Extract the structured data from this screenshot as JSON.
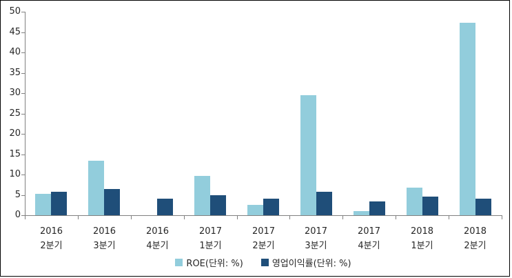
{
  "chart_data": {
    "type": "bar",
    "title": "",
    "xlabel": "",
    "ylabel": "",
    "categories": [
      [
        "2016",
        "2분기"
      ],
      [
        "2016",
        "3분기"
      ],
      [
        "2016",
        "4분기"
      ],
      [
        "2017",
        "1분기"
      ],
      [
        "2017",
        "2분기"
      ],
      [
        "2017",
        "3분기"
      ],
      [
        "2017",
        "4분기"
      ],
      [
        "2018",
        "1분기"
      ],
      [
        "2018",
        "2분기"
      ]
    ],
    "series": [
      {
        "name": "ROE(단위: %)",
        "color": "#92CDDC",
        "values": [
          5.2,
          13.4,
          0,
          9.6,
          2.5,
          29.5,
          1.0,
          6.7,
          47.3
        ]
      },
      {
        "name": "영업이익률(단위: %)",
        "color": "#1F4E79",
        "values": [
          5.8,
          6.4,
          4.0,
          4.9,
          4.0,
          5.8,
          3.4,
          4.6,
          4.0
        ]
      }
    ],
    "ylim": [
      0,
      50
    ],
    "ytick_step": 5,
    "yticks": [
      0,
      5,
      10,
      15,
      20,
      25,
      30,
      35,
      40,
      45,
      50
    ],
    "grid": false,
    "legend_position": "bottom",
    "axis_color": "#808080",
    "label_color": "#262626",
    "background_color": "#FFFFFF",
    "border_color": "#000000"
  }
}
